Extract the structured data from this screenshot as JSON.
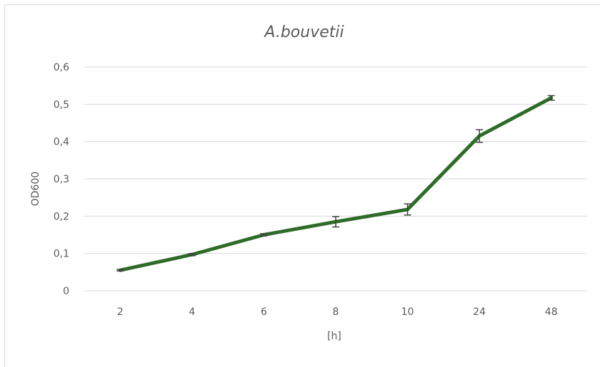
{
  "chart_data": {
    "type": "line",
    "title": "A.bouvetii",
    "xlabel": "[h]",
    "ylabel": "OD600",
    "categories": [
      "2",
      "4",
      "6",
      "8",
      "10",
      "24",
      "48"
    ],
    "series": [
      {
        "values": [
          0.055,
          0.097,
          0.15,
          0.185,
          0.218,
          0.415,
          0.517
        ],
        "errors": [
          0.002,
          0.003,
          0.003,
          0.014,
          0.015,
          0.017,
          0.006
        ],
        "color": "#2e6b28"
      }
    ],
    "yticks": [
      "0",
      "0,1",
      "0,2",
      "0,3",
      "0,4",
      "0,5",
      "0,6"
    ],
    "ylim": [
      0,
      0.6
    ],
    "grid": true,
    "error_bar_color": "#404040",
    "gridline_color": "#d9d9d9"
  }
}
